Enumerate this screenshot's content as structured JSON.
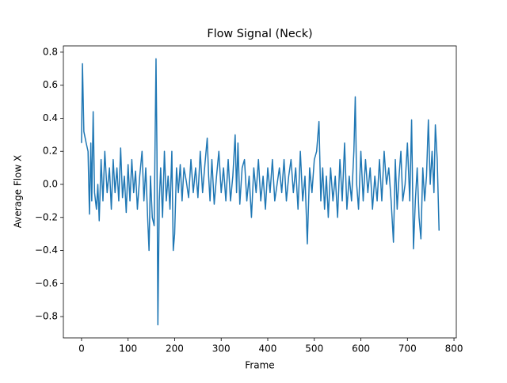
{
  "chart_data": {
    "type": "line",
    "title": "Flow Signal (Neck)",
    "x_label": "Frame",
    "y_label": "Average Flow X",
    "x": [
      0,
      2,
      5,
      10,
      14,
      17,
      20,
      22,
      25,
      28,
      32,
      35,
      38,
      42,
      46,
      50,
      55,
      60,
      64,
      68,
      72,
      76,
      80,
      84,
      88,
      92,
      96,
      100,
      104,
      108,
      112,
      116,
      120,
      125,
      130,
      134,
      138,
      142,
      145,
      148,
      152,
      156,
      160,
      162,
      164,
      167,
      170,
      174,
      178,
      182,
      186,
      190,
      194,
      197,
      200,
      204,
      208,
      212,
      216,
      220,
      225,
      230,
      235,
      240,
      245,
      250,
      255,
      260,
      265,
      270,
      273,
      276,
      280,
      285,
      290,
      295,
      300,
      305,
      310,
      315,
      320,
      325,
      330,
      333,
      336,
      340,
      345,
      350,
      355,
      360,
      365,
      370,
      375,
      380,
      385,
      390,
      395,
      400,
      405,
      410,
      415,
      420,
      425,
      430,
      435,
      440,
      445,
      450,
      455,
      460,
      465,
      470,
      475,
      480,
      485,
      490,
      495,
      500,
      505,
      510,
      514,
      518,
      522,
      526,
      530,
      535,
      540,
      545,
      550,
      555,
      560,
      565,
      570,
      575,
      580,
      585,
      588,
      591,
      595,
      600,
      605,
      610,
      615,
      620,
      625,
      630,
      635,
      640,
      645,
      650,
      655,
      660,
      665,
      670,
      674,
      678,
      682,
      686,
      690,
      695,
      700,
      705,
      709,
      713,
      717,
      721,
      725,
      729,
      733,
      737,
      741,
      745,
      749,
      753,
      757,
      760,
      764,
      768
    ],
    "series": [
      {
        "name": "Average Flow X",
        "color": "#1f77b4",
        "values": [
          0.25,
          0.73,
          0.32,
          0.25,
          0.2,
          -0.18,
          0.25,
          -0.1,
          0.44,
          -0.05,
          -0.15,
          0.0,
          -0.22,
          0.15,
          -0.1,
          0.2,
          -0.05,
          0.1,
          -0.15,
          0.15,
          -0.05,
          0.1,
          -0.1,
          0.22,
          -0.08,
          0.05,
          -0.17,
          0.12,
          -0.1,
          0.15,
          -0.05,
          0.08,
          -0.15,
          0.05,
          0.2,
          -0.1,
          0.1,
          -0.2,
          -0.4,
          0.05,
          -0.2,
          -0.25,
          0.76,
          0.2,
          -0.85,
          -0.1,
          0.1,
          -0.2,
          0.2,
          -0.1,
          0.05,
          -0.15,
          0.2,
          -0.4,
          -0.3,
          0.1,
          -0.05,
          0.12,
          -0.1,
          0.1,
          0.02,
          -0.08,
          0.15,
          -0.05,
          0.1,
          -0.08,
          0.2,
          -0.05,
          0.12,
          0.28,
          0.05,
          -0.1,
          0.15,
          -0.12,
          0.05,
          0.2,
          -0.05,
          0.1,
          -0.1,
          0.15,
          -0.1,
          0.05,
          0.3,
          -0.05,
          0.25,
          -0.12,
          0.1,
          0.15,
          -0.1,
          0.05,
          -0.2,
          0.1,
          -0.05,
          0.15,
          -0.1,
          0.05,
          -0.15,
          0.1,
          -0.05,
          0.15,
          -0.1,
          0.0,
          0.1,
          -0.05,
          0.15,
          -0.1,
          0.05,
          0.15,
          -0.05,
          0.1,
          -0.15,
          0.2,
          -0.1,
          0.05,
          -0.36,
          0.1,
          -0.05,
          0.15,
          0.2,
          0.38,
          -0.1,
          0.1,
          -0.15,
          0.05,
          -0.2,
          0.1,
          -0.1,
          0.05,
          -0.2,
          0.15,
          -0.1,
          0.25,
          -0.15,
          0.05,
          -0.1,
          0.2,
          0.53,
          0.0,
          -0.15,
          0.2,
          -0.1,
          0.15,
          -0.05,
          0.1,
          -0.15,
          0.05,
          -0.1,
          0.15,
          -0.1,
          0.2,
          0.0,
          0.1,
          -0.1,
          -0.35,
          0.15,
          -0.15,
          0.05,
          0.2,
          -0.1,
          0.0,
          0.25,
          -0.1,
          0.39,
          -0.39,
          -0.1,
          0.1,
          -0.2,
          -0.33,
          0.1,
          -0.1,
          0.05,
          0.39,
          0.0,
          0.2,
          -0.05,
          0.36,
          0.15,
          -0.28
        ]
      }
    ],
    "xlim": [
      -39,
      805
    ],
    "ylim": [
      -0.929,
      0.838
    ],
    "xticks": [
      0,
      100,
      200,
      300,
      400,
      500,
      600,
      700,
      800
    ],
    "yticks": [
      {
        "value": -0.8,
        "label": "−0.8"
      },
      {
        "value": -0.6,
        "label": "−0.6"
      },
      {
        "value": -0.4,
        "label": "−0.4"
      },
      {
        "value": -0.2,
        "label": "−0.2"
      },
      {
        "value": 0,
        "label": "0.0"
      },
      {
        "value": 0.2,
        "label": "0.2"
      },
      {
        "value": 0.4,
        "label": "0.4"
      },
      {
        "value": 0.6,
        "label": "0.6"
      },
      {
        "value": 0.8,
        "label": "0.8"
      }
    ],
    "grid": false
  }
}
